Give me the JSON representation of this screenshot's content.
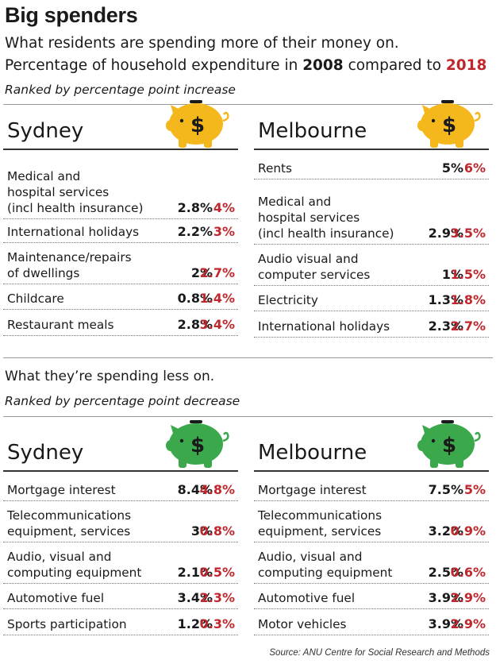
{
  "title": "Big spenders",
  "subtitle_line1": "What residents are spending more of their money on.",
  "subtitle_line2_prefix": "Percentage of household expenditure in ",
  "year_2008": "2008",
  "subtitle_line2_mid": " compared to ",
  "year_2018": "2018",
  "rank_increase": "Ranked by percentage point increase",
  "less_heading": "What they’re spending less on.",
  "rank_decrease": "Ranked by percentage point decrease",
  "source": "Source: ANU Centre for Social Research and Methods",
  "colors": {
    "y2018": "#c0272d",
    "pig_more": "#f5b81c",
    "pig_less": "#3aa84b"
  },
  "panels": [
    {
      "city": "Sydney",
      "pig_color": "#f5b81c",
      "rows": [
        {
          "label": "Medical and\nhospital services\n(incl health insurance)",
          "v2008": "2.8%",
          "v2018": "4%"
        },
        {
          "label": "International holidays",
          "v2008": "2.2%",
          "v2018": "3%"
        },
        {
          "label": "Maintenance/repairs\nof dwellings",
          "v2008": "2%",
          "v2018": "2.7%"
        },
        {
          "label": "Childcare",
          "v2008": "0.8%",
          "v2018": "1.4%"
        },
        {
          "label": "Restaurant meals",
          "v2008": "2.8%",
          "v2018": "3.4%"
        }
      ]
    },
    {
      "city": "Melbourne",
      "pig_color": "#f5b81c",
      "rows": [
        {
          "label": "Rents",
          "v2008": "5%",
          "v2018": "6%"
        },
        {
          "label": "Medical and\nhospital services\n(incl health insurance)",
          "v2008": "2.9%",
          "v2018": "3.5%"
        },
        {
          "label": "Audio visual and\ncomputer services",
          "v2008": "1%",
          "v2018": "1.5%"
        },
        {
          "label": "Electricity",
          "v2008": "1.3%",
          "v2018": "1.8%"
        },
        {
          "label": "International holidays",
          "v2008": "2.3%",
          "v2018": "2.7%"
        }
      ]
    },
    {
      "city": "Sydney",
      "pig_color": "#3aa84b",
      "rows": [
        {
          "label": "Mortgage interest",
          "v2008": "8.4%",
          "v2018": "4.8%"
        },
        {
          "label": "Telecommunications\nequipment, services",
          "v2008": "3%",
          "v2018": "0.8%"
        },
        {
          "label": "Audio, visual and\ncomputing equipment",
          "v2008": "2.1%",
          "v2018": "0.5%"
        },
        {
          "label": "Automotive fuel",
          "v2008": "3.4%",
          "v2018": "2.3%"
        },
        {
          "label": "Sports participation",
          "v2008": "1.2%",
          "v2018": "0.3%"
        }
      ]
    },
    {
      "city": "Melbourne",
      "pig_color": "#3aa84b",
      "rows": [
        {
          "label": "Mortgage interest",
          "v2008": "7.5%",
          "v2018": "5%"
        },
        {
          "label": "Telecommunications\nequipment, services",
          "v2008": "3.2%",
          "v2018": "0.9%"
        },
        {
          "label": "Audio, visual and\ncomputing equipment",
          "v2008": "2.5%",
          "v2018": "0.6%"
        },
        {
          "label": "Automotive fuel",
          "v2008": "3.9%",
          "v2018": "2.9%"
        },
        {
          "label": "Motor vehicles",
          "v2008": "3.9%",
          "v2018": "2.9%"
        }
      ]
    }
  ],
  "chart_data": {
    "type": "table",
    "title": "Big spenders",
    "columns": [
      "2008",
      "2018"
    ],
    "tables": [
      {
        "section": "more",
        "city": "Sydney",
        "categories": [
          "Medical and hospital services (incl health insurance)",
          "International holidays",
          "Maintenance/repairs of dwellings",
          "Childcare",
          "Restaurant meals"
        ],
        "series": [
          {
            "name": "2008",
            "values": [
              2.8,
              2.2,
              2,
              0.8,
              2.8
            ]
          },
          {
            "name": "2018",
            "values": [
              4,
              3,
              2.7,
              1.4,
              3.4
            ]
          }
        ]
      },
      {
        "section": "more",
        "city": "Melbourne",
        "categories": [
          "Rents",
          "Medical and hospital services (incl health insurance)",
          "Audio visual and computer services",
          "Electricity",
          "International holidays"
        ],
        "series": [
          {
            "name": "2008",
            "values": [
              5,
              2.9,
              1,
              1.3,
              2.3
            ]
          },
          {
            "name": "2018",
            "values": [
              6,
              3.5,
              1.5,
              1.8,
              2.7
            ]
          }
        ]
      },
      {
        "section": "less",
        "city": "Sydney",
        "categories": [
          "Mortgage interest",
          "Telecommunications equipment, services",
          "Audio, visual and computing equipment",
          "Automotive fuel",
          "Sports participation"
        ],
        "series": [
          {
            "name": "2008",
            "values": [
              8.4,
              3,
              2.1,
              3.4,
              1.2
            ]
          },
          {
            "name": "2018",
            "values": [
              4.8,
              0.8,
              0.5,
              2.3,
              0.3
            ]
          }
        ]
      },
      {
        "section": "less",
        "city": "Melbourne",
        "categories": [
          "Mortgage interest",
          "Telecommunications equipment, services",
          "Audio, visual and computing equipment",
          "Automotive fuel",
          "Motor vehicles"
        ],
        "series": [
          {
            "name": "2008",
            "values": [
              7.5,
              3.2,
              2.5,
              3.9,
              3.9
            ]
          },
          {
            "name": "2018",
            "values": [
              5,
              0.9,
              0.6,
              2.9,
              2.9
            ]
          }
        ]
      }
    ]
  }
}
